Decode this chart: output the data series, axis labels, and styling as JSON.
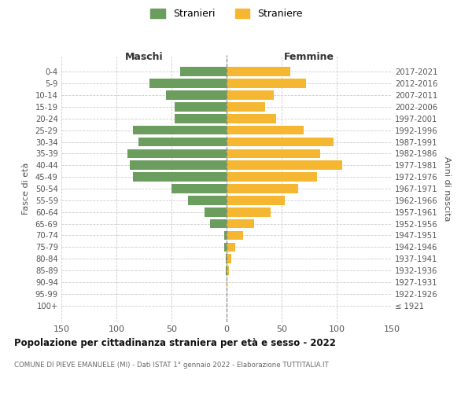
{
  "age_groups": [
    "100+",
    "95-99",
    "90-94",
    "85-89",
    "80-84",
    "75-79",
    "70-74",
    "65-69",
    "60-64",
    "55-59",
    "50-54",
    "45-49",
    "40-44",
    "35-39",
    "30-34",
    "25-29",
    "20-24",
    "15-19",
    "10-14",
    "5-9",
    "0-4"
  ],
  "birth_years": [
    "≤ 1921",
    "1922-1926",
    "1927-1931",
    "1932-1936",
    "1937-1941",
    "1942-1946",
    "1947-1951",
    "1952-1956",
    "1957-1961",
    "1962-1966",
    "1967-1971",
    "1972-1976",
    "1977-1981",
    "1982-1986",
    "1987-1991",
    "1992-1996",
    "1997-2001",
    "2002-2006",
    "2007-2011",
    "2012-2016",
    "2017-2021"
  ],
  "maschi": [
    0,
    0,
    0,
    1,
    1,
    2,
    2,
    15,
    20,
    35,
    50,
    85,
    88,
    90,
    80,
    85,
    47,
    47,
    55,
    70,
    42
  ],
  "femmine": [
    0,
    0,
    1,
    2,
    4,
    8,
    15,
    25,
    40,
    53,
    65,
    82,
    105,
    85,
    97,
    70,
    45,
    35,
    43,
    72,
    58
  ],
  "maschi_color": "#6b9e5e",
  "femmine_color": "#f5b731",
  "grid_color": "#cccccc",
  "title": "Popolazione per cittadinanza straniera per età e sesso - 2022",
  "subtitle": "COMUNE DI PIEVE EMANUELE (MI) - Dati ISTAT 1° gennaio 2022 - Elaborazione TUTTITALIA.IT",
  "ylabel_left": "Fasce di età",
  "ylabel_right": "Anni di nascita",
  "xlabel_left": "Maschi",
  "xlabel_right": "Femmine",
  "legend_maschi": "Stranieri",
  "legend_femmine": "Straniere",
  "xlim": 150
}
